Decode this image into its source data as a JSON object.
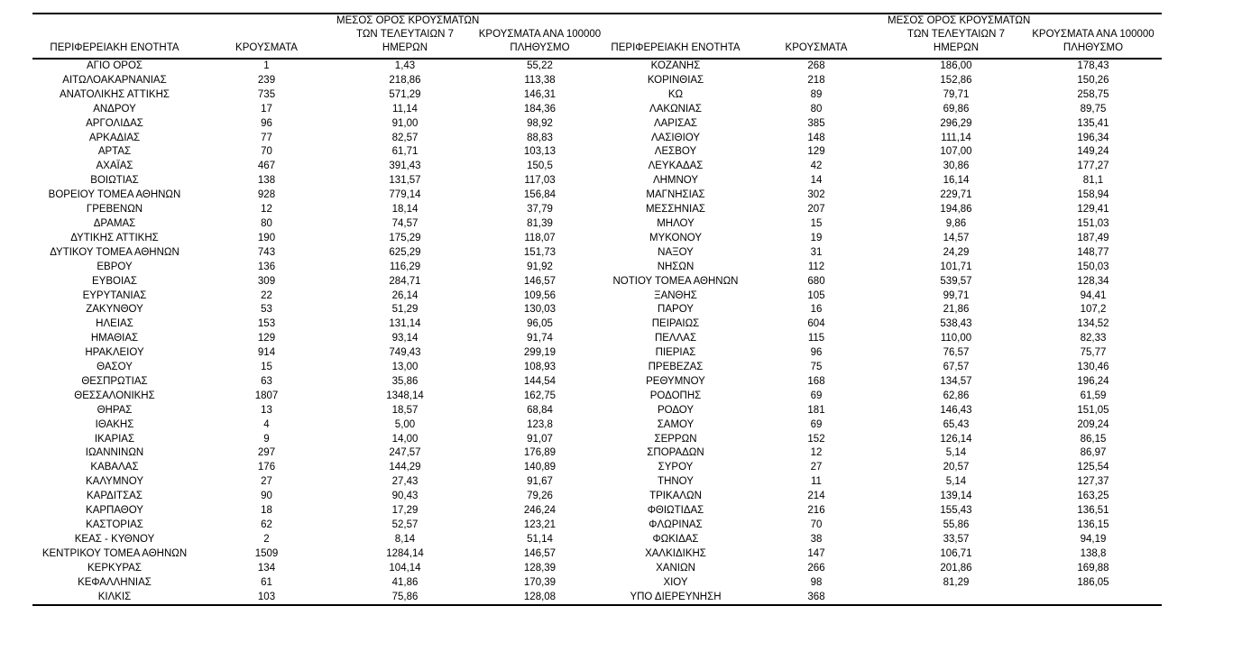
{
  "colors": {
    "background": "#ffffff",
    "text": "#000000",
    "rule": "#000000"
  },
  "table": {
    "columns": {
      "region": "ΠΕΡΙΦΕΡΕΙΑΚΗ ΕΝΟΤΗΤΑ",
      "cases": "ΚΡΟΥΣΜΑΤΑ",
      "avg7_lines": [
        "ΜΕΣΟΣ ΟΡΟΣ ΚΡΟΥΣΜΑΤΩΝ",
        "ΤΩΝ ΤΕΛΕΥΤΑΙΩΝ 7",
        "ΗΜΕΡΩΝ"
      ],
      "per100k_lines": [
        "ΚΡΟΥΣΜΑΤΑ ΑΝΑ 100000",
        "ΠΛΗΘΥΣΜΟ"
      ]
    },
    "left_rows": [
      [
        "ΑΓΙΟ ΟΡΟΣ",
        "1",
        "1,43",
        "55,22"
      ],
      [
        "ΑΙΤΩΛΟΑΚΑΡΝΑΝΙΑΣ",
        "239",
        "218,86",
        "113,38"
      ],
      [
        "ΑΝΑΤΟΛΙΚΗΣ ΑΤΤΙΚΗΣ",
        "735",
        "571,29",
        "146,31"
      ],
      [
        "ΑΝΔΡΟΥ",
        "17",
        "11,14",
        "184,36"
      ],
      [
        "ΑΡΓΟΛΙΔΑΣ",
        "96",
        "91,00",
        "98,92"
      ],
      [
        "ΑΡΚΑΔΙΑΣ",
        "77",
        "82,57",
        "88,83"
      ],
      [
        "ΑΡΤΑΣ",
        "70",
        "61,71",
        "103,13"
      ],
      [
        "ΑΧΑΪΑΣ",
        "467",
        "391,43",
        "150,5"
      ],
      [
        "ΒΟΙΩΤΙΑΣ",
        "138",
        "131,57",
        "117,03"
      ],
      [
        "ΒΟΡΕΙΟΥ ΤΟΜΕΑ ΑΘΗΝΩΝ",
        "928",
        "779,14",
        "156,84"
      ],
      [
        "ΓΡΕΒΕΝΩΝ",
        "12",
        "18,14",
        "37,79"
      ],
      [
        "ΔΡΑΜΑΣ",
        "80",
        "74,57",
        "81,39"
      ],
      [
        "ΔΥΤΙΚΗΣ ΑΤΤΙΚΗΣ",
        "190",
        "175,29",
        "118,07"
      ],
      [
        "ΔΥΤΙΚΟΥ ΤΟΜΕΑ ΑΘΗΝΩΝ",
        "743",
        "625,29",
        "151,73"
      ],
      [
        "ΕΒΡΟΥ",
        "136",
        "116,29",
        "91,92"
      ],
      [
        "ΕΥΒΟΙΑΣ",
        "309",
        "284,71",
        "146,57"
      ],
      [
        "ΕΥΡΥΤΑΝΙΑΣ",
        "22",
        "26,14",
        "109,56"
      ],
      [
        "ΖΑΚΥΝΘΟΥ",
        "53",
        "51,29",
        "130,03"
      ],
      [
        "ΗΛΕΙΑΣ",
        "153",
        "131,14",
        "96,05"
      ],
      [
        "ΗΜΑΘΙΑΣ",
        "129",
        "93,14",
        "91,74"
      ],
      [
        "ΗΡΑΚΛΕΙΟΥ",
        "914",
        "749,43",
        "299,19"
      ],
      [
        "ΘΑΣΟΥ",
        "15",
        "13,00",
        "108,93"
      ],
      [
        "ΘΕΣΠΡΩΤΙΑΣ",
        "63",
        "35,86",
        "144,54"
      ],
      [
        "ΘΕΣΣΑΛΟΝΙΚΗΣ",
        "1807",
        "1348,14",
        "162,75"
      ],
      [
        "ΘΗΡΑΣ",
        "13",
        "18,57",
        "68,84"
      ],
      [
        "ΙΘΑΚΗΣ",
        "4",
        "5,00",
        "123,8"
      ],
      [
        "ΙΚΑΡΙΑΣ",
        "9",
        "14,00",
        "91,07"
      ],
      [
        "ΙΩΑΝΝΙΝΩΝ",
        "297",
        "247,57",
        "176,89"
      ],
      [
        "ΚΑΒΑΛΑΣ",
        "176",
        "144,29",
        "140,89"
      ],
      [
        "ΚΑΛΥΜΝΟΥ",
        "27",
        "27,43",
        "91,67"
      ],
      [
        "ΚΑΡΔΙΤΣΑΣ",
        "90",
        "90,43",
        "79,26"
      ],
      [
        "ΚΑΡΠΑΘΟΥ",
        "18",
        "17,29",
        "246,24"
      ],
      [
        "ΚΑΣΤΟΡΙΑΣ",
        "62",
        "52,57",
        "123,21"
      ],
      [
        "ΚΕΑΣ - ΚΥΘΝΟΥ",
        "2",
        "8,14",
        "51,14"
      ],
      [
        "ΚΕΝΤΡΙΚΟΥ ΤΟΜΕΑ ΑΘΗΝΩΝ",
        "1509",
        "1284,14",
        "146,57"
      ],
      [
        "ΚΕΡΚΥΡΑΣ",
        "134",
        "104,14",
        "128,39"
      ],
      [
        "ΚΕΦΑΛΛΗΝΙΑΣ",
        "61",
        "41,86",
        "170,39"
      ],
      [
        "ΚΙΛΚΙΣ",
        "103",
        "75,86",
        "128,08"
      ]
    ],
    "right_rows": [
      [
        "ΚΟΖΑΝΗΣ",
        "268",
        "186,00",
        "178,43"
      ],
      [
        "ΚΟΡΙΝΘΙΑΣ",
        "218",
        "152,86",
        "150,26"
      ],
      [
        "ΚΩ",
        "89",
        "79,71",
        "258,75"
      ],
      [
        "ΛΑΚΩΝΙΑΣ",
        "80",
        "69,86",
        "89,75"
      ],
      [
        "ΛΑΡΙΣΑΣ",
        "385",
        "296,29",
        "135,41"
      ],
      [
        "ΛΑΣΙΘΙΟΥ",
        "148",
        "111,14",
        "196,34"
      ],
      [
        "ΛΕΣΒΟΥ",
        "129",
        "107,00",
        "149,24"
      ],
      [
        "ΛΕΥΚΑΔΑΣ",
        "42",
        "30,86",
        "177,27"
      ],
      [
        "ΛΗΜΝΟΥ",
        "14",
        "16,14",
        "81,1"
      ],
      [
        "ΜΑΓΝΗΣΙΑΣ",
        "302",
        "229,71",
        "158,94"
      ],
      [
        "ΜΕΣΣΗΝΙΑΣ",
        "207",
        "194,86",
        "129,41"
      ],
      [
        "ΜΗΛΟΥ",
        "15",
        "9,86",
        "151,03"
      ],
      [
        "ΜΥΚΟΝΟΥ",
        "19",
        "14,57",
        "187,49"
      ],
      [
        "ΝΑΞΟΥ",
        "31",
        "24,29",
        "148,77"
      ],
      [
        "ΝΗΣΩΝ",
        "112",
        "101,71",
        "150,03"
      ],
      [
        "ΝΟΤΙΟΥ ΤΟΜΕΑ ΑΘΗΝΩΝ",
        "680",
        "539,57",
        "128,34"
      ],
      [
        "ΞΑΝΘΗΣ",
        "105",
        "99,71",
        "94,41"
      ],
      [
        "ΠΑΡΟΥ",
        "16",
        "21,86",
        "107,2"
      ],
      [
        "ΠΕΙΡΑΙΩΣ",
        "604",
        "538,43",
        "134,52"
      ],
      [
        "ΠΕΛΛΑΣ",
        "115",
        "110,00",
        "82,33"
      ],
      [
        "ΠΙΕΡΙΑΣ",
        "96",
        "76,57",
        "75,77"
      ],
      [
        "ΠΡΕΒΕΖΑΣ",
        "75",
        "67,57",
        "130,46"
      ],
      [
        "ΡΕΘΥΜΝΟΥ",
        "168",
        "134,57",
        "196,24"
      ],
      [
        "ΡΟΔΟΠΗΣ",
        "69",
        "62,86",
        "61,59"
      ],
      [
        "ΡΟΔΟΥ",
        "181",
        "146,43",
        "151,05"
      ],
      [
        "ΣΑΜΟΥ",
        "69",
        "65,43",
        "209,24"
      ],
      [
        "ΣΕΡΡΩΝ",
        "152",
        "126,14",
        "86,15"
      ],
      [
        "ΣΠΟΡΑΔΩΝ",
        "12",
        "5,14",
        "86,97"
      ],
      [
        "ΣΥΡΟΥ",
        "27",
        "20,57",
        "125,54"
      ],
      [
        "ΤΗΝΟΥ",
        "11",
        "5,14",
        "127,37"
      ],
      [
        "ΤΡΙΚΑΛΩΝ",
        "214",
        "139,14",
        "163,25"
      ],
      [
        "ΦΘΙΩΤΙΔΑΣ",
        "216",
        "155,43",
        "136,51"
      ],
      [
        "ΦΛΩΡΙΝΑΣ",
        "70",
        "55,86",
        "136,15"
      ],
      [
        "ΦΩΚΙΔΑΣ",
        "38",
        "33,57",
        "94,19"
      ],
      [
        "ΧΑΛΚΙΔΙΚΗΣ",
        "147",
        "106,71",
        "138,8"
      ],
      [
        "ΧΑΝΙΩΝ",
        "266",
        "201,86",
        "169,88"
      ],
      [
        "ΧΙΟΥ",
        "98",
        "81,29",
        "186,05"
      ],
      [
        "ΥΠΟ ΔΙΕΡΕΥΝΗΣΗ",
        "368",
        "",
        ""
      ]
    ]
  }
}
